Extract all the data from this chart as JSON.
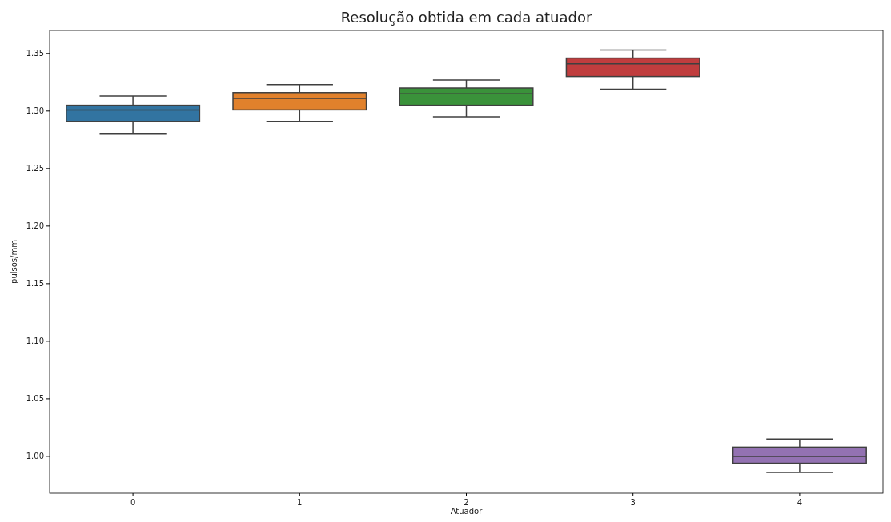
{
  "chart_data": {
    "type": "box",
    "title": "Resolução obtida em cada atuador",
    "xlabel": "Atuador",
    "ylabel": "pulsos/mm",
    "categories": [
      "0",
      "1",
      "2",
      "3",
      "4"
    ],
    "colors": [
      "#3274a1",
      "#e1812c",
      "#3a923a",
      "#c03d3e",
      "#9372b2"
    ],
    "boxes": [
      {
        "low": 1.28,
        "q1": 1.291,
        "median": 1.301,
        "q3": 1.305,
        "high": 1.313
      },
      {
        "low": 1.291,
        "q1": 1.301,
        "median": 1.311,
        "q3": 1.316,
        "high": 1.323
      },
      {
        "low": 1.295,
        "q1": 1.305,
        "median": 1.315,
        "q3": 1.32,
        "high": 1.327
      },
      {
        "low": 1.319,
        "q1": 1.33,
        "median": 1.341,
        "q3": 1.346,
        "high": 1.353
      },
      {
        "low": 0.986,
        "q1": 0.994,
        "median": 1.0,
        "q3": 1.008,
        "high": 1.015
      }
    ],
    "ylim": [
      0.968,
      1.37
    ],
    "yticks": [
      {
        "value": 1.0,
        "label": "1.00"
      },
      {
        "value": 1.05,
        "label": "1.05"
      },
      {
        "value": 1.1,
        "label": "1.10"
      },
      {
        "value": 1.15,
        "label": "1.15"
      },
      {
        "value": 1.2,
        "label": "1.20"
      },
      {
        "value": 1.25,
        "label": "1.25"
      },
      {
        "value": 1.3,
        "label": "1.30"
      },
      {
        "value": 1.35,
        "label": "1.35"
      }
    ],
    "grid": false
  }
}
